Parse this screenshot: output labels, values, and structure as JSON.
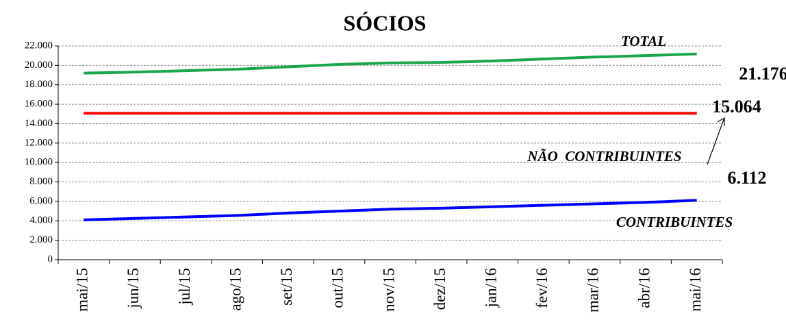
{
  "chart_data": {
    "type": "line",
    "title": "SÓCIOS",
    "categories": [
      "mai/15",
      "jun/15",
      "jul/15",
      "ago/15",
      "set/15",
      "out/15",
      "nov/15",
      "dez/15",
      "jan/16",
      "fev/16",
      "mar/16",
      "abr/16",
      "mai/16"
    ],
    "series": [
      {
        "name": "TOTAL",
        "color": "#1aa64a",
        "values": [
          19200,
          19300,
          19450,
          19600,
          19850,
          20100,
          20250,
          20300,
          20450,
          20650,
          20850,
          21000,
          21176
        ],
        "value_labels": [
          null,
          null,
          null,
          null,
          null,
          null,
          null,
          null,
          null,
          null,
          null,
          null,
          "21.176"
        ]
      },
      {
        "name": "NÃO  CONTRIBUINTES",
        "color": "#ff0000",
        "values": [
          15064,
          15064,
          15064,
          15064,
          15064,
          15064,
          15064,
          15064,
          15064,
          15064,
          15064,
          15064,
          15064
        ],
        "value_labels": [
          null,
          null,
          null,
          null,
          null,
          null,
          null,
          null,
          null,
          null,
          null,
          null,
          "15.064"
        ]
      },
      {
        "name": "CONTRIBUINTES",
        "color": "#0000ff",
        "values": [
          4100,
          4250,
          4400,
          4550,
          4800,
          5000,
          5200,
          5300,
          5450,
          5600,
          5750,
          5900,
          6112
        ],
        "value_labels": [
          null,
          null,
          null,
          null,
          null,
          null,
          null,
          null,
          null,
          null,
          null,
          null,
          "6.112"
        ]
      }
    ],
    "ylim": [
      0,
      22000
    ],
    "yticks": [
      0,
      {
        "value": 2000,
        "label": "2.000"
      },
      {
        "value": 4000,
        "label": "4.000"
      },
      {
        "value": 6000,
        "label": "6.000"
      },
      {
        "value": 8000,
        "label": "8.000"
      },
      {
        "value": 10000,
        "label": "10.000"
      },
      {
        "value": 12000,
        "label": "12.000"
      },
      {
        "value": 14000,
        "label": "14.000"
      },
      {
        "value": 16000,
        "label": "16.000"
      },
      {
        "value": 18000,
        "label": "18.000"
      },
      {
        "value": 20000,
        "label": "20.000"
      },
      {
        "value": 22000,
        "label": "22.000"
      }
    ],
    "grid": true
  }
}
